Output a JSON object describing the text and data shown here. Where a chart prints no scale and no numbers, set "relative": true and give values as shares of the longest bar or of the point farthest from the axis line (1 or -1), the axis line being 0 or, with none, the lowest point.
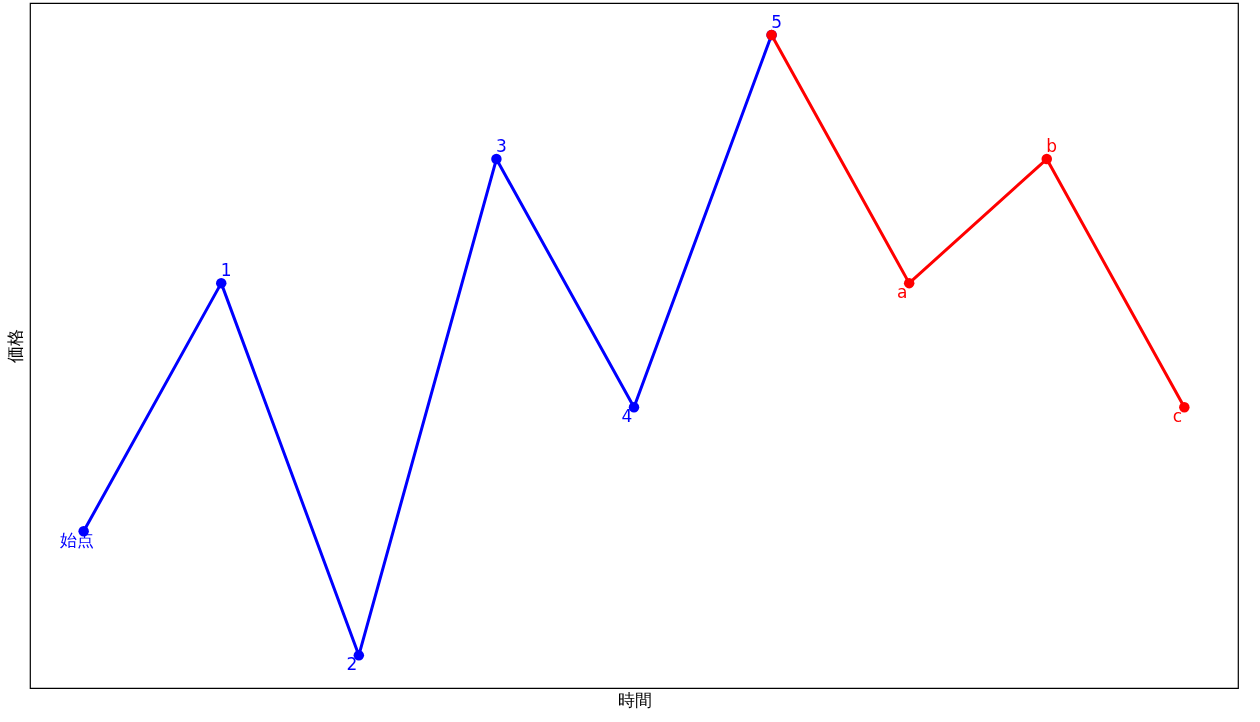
{
  "chart_data": {
    "type": "line",
    "relative": true,
    "xlabel": "時間",
    "ylabel": "価格",
    "tick_labels": false,
    "marker": "circle",
    "line_style": "solid",
    "categories": [
      null,
      null,
      null,
      null,
      null,
      null,
      null,
      null,
      null
    ],
    "series": [
      {
        "color": "#0000ff",
        "values": [
          0.24,
          0.62,
          0.05,
          0.81,
          0.43,
          1,
          null,
          null,
          null
        ]
      },
      {
        "color": "#ff0000",
        "values": [
          null,
          null,
          null,
          null,
          null,
          1,
          0.62,
          0.81,
          0.43
        ]
      }
    ],
    "annotations": [
      {
        "text": "始点",
        "y": 0.24
      },
      {
        "text": "1",
        "y": 0.62
      },
      {
        "text": "2",
        "y": 0.05
      },
      {
        "text": "3",
        "y": 0.81
      },
      {
        "text": "4",
        "y": 0.43
      },
      {
        "text": "5",
        "y": 1
      },
      {
        "text": "a",
        "y": 0.62
      },
      {
        "text": "b",
        "y": 0.81
      },
      {
        "text": "c",
        "y": 0.43
      }
    ]
  }
}
